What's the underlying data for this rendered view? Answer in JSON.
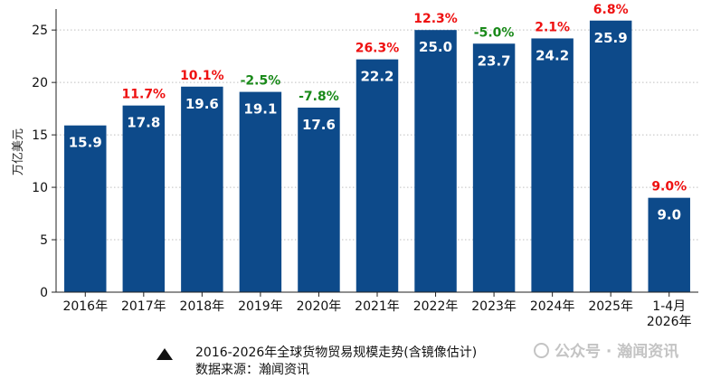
{
  "chart_data": {
    "type": "bar",
    "ylabel": "万亿美元",
    "xlabel": "",
    "ylim": [
      0,
      27
    ],
    "yticks": [
      0,
      5,
      10,
      15,
      20,
      25
    ],
    "grid": "horizontal-dotted",
    "categories": [
      "2016年",
      "2017年",
      "2018年",
      "2019年",
      "2020年",
      "2021年",
      "2022年",
      "2023年",
      "2024年",
      "2025年",
      "1-4月\n2026年"
    ],
    "values": [
      15.9,
      17.8,
      19.6,
      19.1,
      17.6,
      22.2,
      25.0,
      23.7,
      24.2,
      25.9,
      9.0
    ],
    "value_labels": [
      "15.9",
      "17.8",
      "19.6",
      "19.1",
      "17.6",
      "22.2",
      "25.0",
      "23.7",
      "24.2",
      "25.9",
      "9.0"
    ],
    "growth_labels": [
      "",
      "11.7%",
      "10.1%",
      "-2.5%",
      "-7.8%",
      "26.3%",
      "12.3%",
      "-5.0%",
      "2.1%",
      "6.8%",
      "9.0%"
    ],
    "colors": {
      "bar": "#0d4a8a",
      "positive": "#ee1111",
      "negative": "#1a8a1a",
      "grid": "#bfbfbf",
      "axis": "#222222"
    }
  },
  "caption": {
    "icon": "triangle-up-icon",
    "title": "2016-2026年全球货物贸易规模走势(含镜像估计)",
    "source": "数据来源：瀚闻资讯"
  },
  "watermark": {
    "icon": "wechat-logo-icon",
    "text": "公众号 · 瀚闻资讯"
  }
}
